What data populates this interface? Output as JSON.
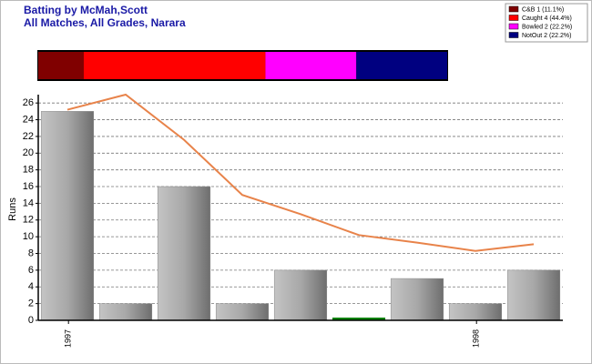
{
  "chart_data": [
    {
      "type": "stacked-bar",
      "title": "Batting by McMah,Scott",
      "subtitle": "All Matches, All Grades, Narara",
      "categories": [
        "C&B 1 (11.1%)",
        "Caught 4 (44.4%)",
        "Bowled 2 (22.2%)",
        "NotOut 2 (22.2%)"
      ],
      "values": [
        1,
        4,
        2,
        2
      ],
      "colors": [
        "#800000",
        "#ff0000",
        "#ff00ff",
        "#000080"
      ]
    },
    {
      "type": "bar",
      "ylabel": "Runs",
      "categories": [
        "1997",
        null,
        null,
        null,
        null,
        null,
        null,
        "1998",
        null
      ],
      "ylim": [
        0,
        27
      ],
      "yticks": [
        0,
        2,
        4,
        6,
        8,
        10,
        12,
        14,
        16,
        18,
        20,
        22,
        24,
        26
      ],
      "grid": true,
      "series": [
        {
          "type": "bar",
          "color": "#a8a8a8",
          "values": [
            25,
            2,
            16,
            2,
            6,
            0.3,
            5,
            2,
            6
          ],
          "colors": [
            "#a8a8a8",
            "#a8a8a8",
            "#a8a8a8",
            "#a8a8a8",
            "#a8a8a8",
            "#008000",
            "#a8a8a8",
            "#a8a8a8",
            "#a8a8a8"
          ]
        },
        {
          "type": "line",
          "color": "#e8834a",
          "values": [
            25.2,
            27,
            21.6,
            15,
            12.7,
            10.2,
            9.3,
            8.3,
            9.1
          ]
        }
      ]
    }
  ]
}
